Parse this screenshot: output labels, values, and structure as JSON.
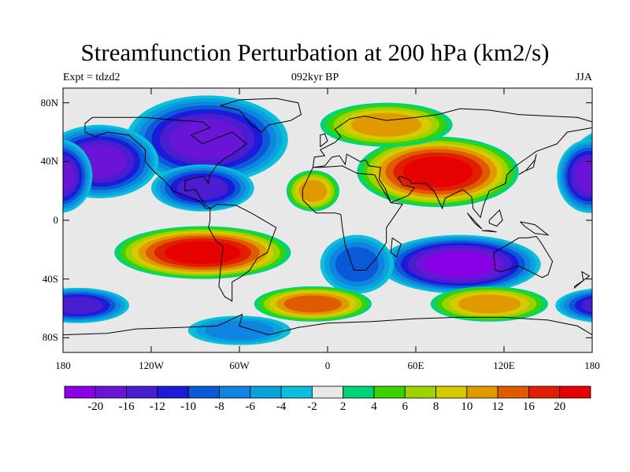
{
  "title": "Streamfunction Perturbation at 200 hPa (km2/s)",
  "subtitle_left": "Expt = tdzd2",
  "subtitle_center": "092kyr BP",
  "subtitle_right": "JJA",
  "map": {
    "projection": "cylindrical equidistant",
    "lon_range": [
      -180,
      180
    ],
    "lat_range": [
      -90,
      90
    ],
    "lat_ticks": [
      {
        "value": 80,
        "label": "80N"
      },
      {
        "value": 40,
        "label": "40N"
      },
      {
        "value": 0,
        "label": "0"
      },
      {
        "value": -40,
        "label": "40S"
      },
      {
        "value": -80,
        "label": "80S"
      }
    ],
    "lon_ticks": [
      {
        "value": -180,
        "label": "180"
      },
      {
        "value": -120,
        "label": "120W"
      },
      {
        "value": -60,
        "label": "60W"
      },
      {
        "value": 0,
        "label": "0"
      },
      {
        "value": 60,
        "label": "60E"
      },
      {
        "value": 120,
        "label": "120E"
      },
      {
        "value": 180,
        "label": "180"
      }
    ],
    "features": [
      {
        "name": "North Atlantic / Arctic Canada low",
        "lon": -82,
        "lat": 55,
        "value": -18,
        "lonRadius": 55,
        "latRadius": 30
      },
      {
        "name": "North Pacific low",
        "lon": -155,
        "lat": 40,
        "value": -16,
        "lonRadius": 40,
        "latRadius": 25
      },
      {
        "name": "Central America low",
        "lon": -85,
        "lat": 22,
        "value": -12,
        "lonRadius": 35,
        "latRadius": 16
      },
      {
        "name": "Dateline low",
        "lon": 178,
        "lat": 30,
        "value": -16,
        "lonRadius": 22,
        "latRadius": 25
      },
      {
        "name": "Asian high",
        "lon": 75,
        "lat": 33,
        "value": 22,
        "lonRadius": 55,
        "latRadius": 24
      },
      {
        "name": "Arctic Europe high",
        "lon": 40,
        "lat": 65,
        "value": 10,
        "lonRadius": 45,
        "latRadius": 15
      },
      {
        "name": "North Africa high",
        "lon": -10,
        "lat": 20,
        "value": 10,
        "lonRadius": 18,
        "latRadius": 14
      },
      {
        "name": "South Pacific high",
        "lon": -85,
        "lat": -22,
        "value": 20,
        "lonRadius": 60,
        "latRadius": 18
      },
      {
        "name": "Indian Ocean low",
        "lon": 90,
        "lat": -30,
        "value": -20,
        "lonRadius": 55,
        "latRadius": 20
      },
      {
        "name": "South Atlantic low",
        "lon": 20,
        "lat": -30,
        "value": -8,
        "lonRadius": 25,
        "latRadius": 20
      },
      {
        "name": "Southern Ocean high (Atlantic)",
        "lon": -10,
        "lat": -57,
        "value": 12,
        "lonRadius": 40,
        "latRadius": 12
      },
      {
        "name": "Southern Ocean high (Indian)",
        "lon": 110,
        "lat": -57,
        "value": 10,
        "lonRadius": 40,
        "latRadius": 12
      },
      {
        "name": "Southern Ocean low (Pacific)",
        "lon": -170,
        "lat": -58,
        "value": -14,
        "lonRadius": 35,
        "latRadius": 12
      },
      {
        "name": "Antarctic Pacific low",
        "lon": -60,
        "lat": -75,
        "value": -6,
        "lonRadius": 35,
        "latRadius": 10
      }
    ]
  },
  "colorbar": {
    "labels": [
      "-20",
      "-16",
      "-12",
      "-10",
      "-8",
      "-6",
      "-4",
      "-2",
      "2",
      "4",
      "6",
      "8",
      "10",
      "12",
      "16",
      "20"
    ],
    "levels": [
      -20,
      -16,
      -12,
      -10,
      -8,
      -6,
      -4,
      -2,
      2,
      4,
      6,
      8,
      10,
      12,
      16,
      20
    ],
    "colors": [
      "#8a00e6",
      "#6a14d8",
      "#4a1ed0",
      "#1c1cd8",
      "#0a5ad8",
      "#0f84e0",
      "#0aa2dc",
      "#0abedc",
      "#e8e8e8",
      "#00d27a",
      "#3ad200",
      "#9ed200",
      "#d6ca00",
      "#e09a00",
      "#e05a00",
      "#e01e00",
      "#e60000"
    ]
  }
}
